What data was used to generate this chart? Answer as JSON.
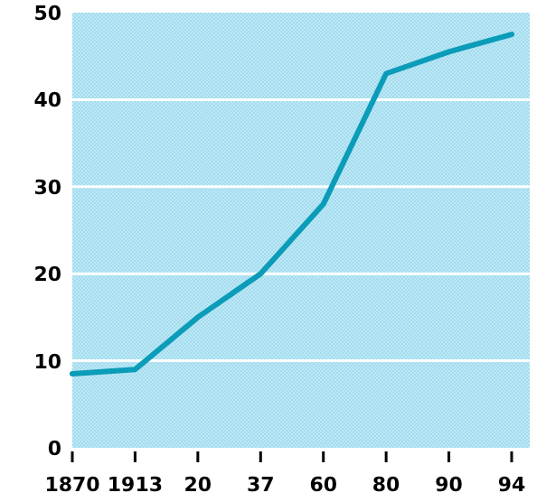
{
  "chart_data": {
    "type": "line",
    "categories": [
      "1870",
      "1913",
      "20",
      "37",
      "60",
      "80",
      "90",
      "94"
    ],
    "series": [
      {
        "color": "#0a9cb8",
        "values": [
          8.5,
          9,
          15,
          20,
          28,
          43,
          45.5,
          47.5
        ]
      }
    ],
    "ylim": [
      0,
      50
    ],
    "yticks": [
      0,
      10,
      20,
      30,
      40,
      50
    ],
    "grid": "y",
    "marker": "none",
    "line_style": "solid"
  }
}
